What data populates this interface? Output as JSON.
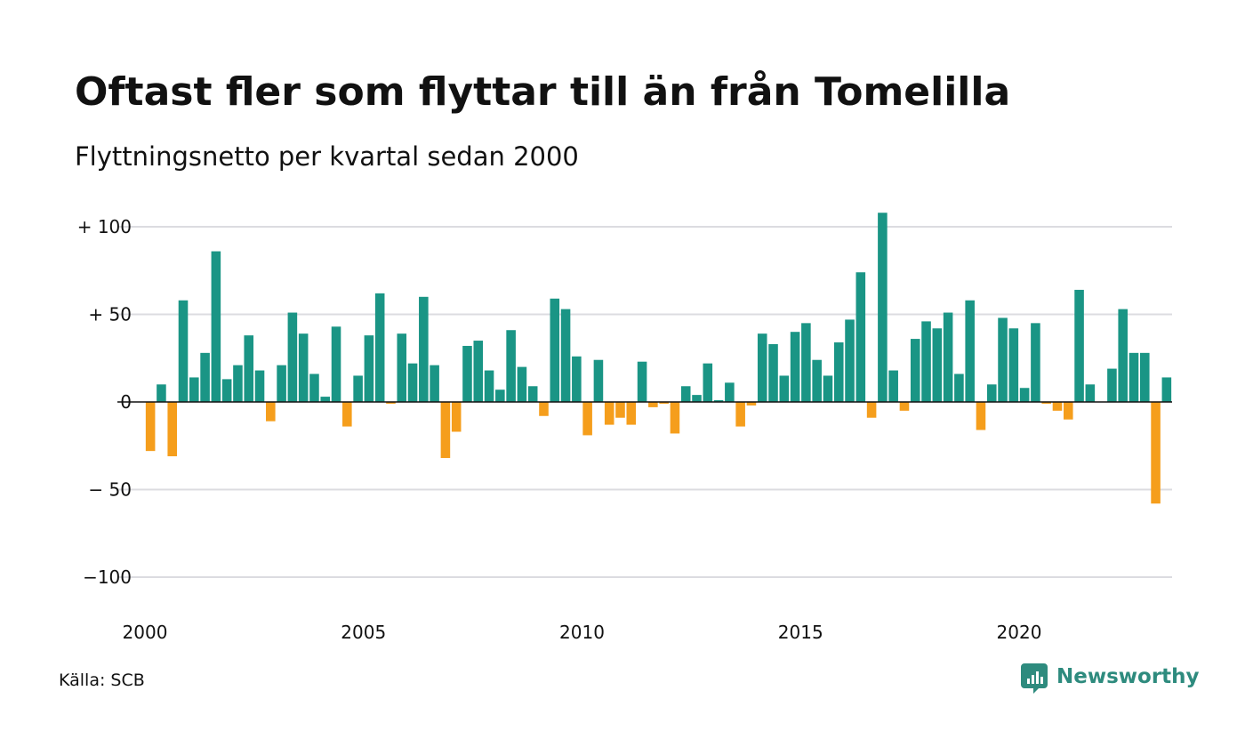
{
  "header": {
    "title": "Oftast fler som flyttar till än från Tomelilla",
    "subtitle": "Flyttningsnetto per kvartal sedan 2000"
  },
  "footer": {
    "source": "Källa: SCB",
    "brand": "Newsworthy"
  },
  "colors": {
    "positive": "#1a9585",
    "negative": "#f59e1c",
    "brand": "#2e8b7e"
  },
  "chart_data": {
    "type": "bar",
    "title": "Oftast fler som flyttar till än från Tomelilla",
    "subtitle": "Flyttningsnetto per kvartal sedan 2000",
    "x_start_year": 2000,
    "periods_per_year": 4,
    "x_ticks": [
      2000,
      2005,
      2010,
      2015,
      2020
    ],
    "y_ticks": [
      {
        "value": 100,
        "label": "+ 100"
      },
      {
        "value": 50,
        "label": "+  50"
      },
      {
        "value": 0,
        "label": "0"
      },
      {
        "value": -50,
        "label": "− 50"
      },
      {
        "value": -100,
        "label": "−100"
      }
    ],
    "ylim": [
      -112,
      110
    ],
    "grid": true,
    "legend": "none",
    "values": [
      -28,
      10,
      -31,
      58,
      14,
      28,
      86,
      13,
      21,
      38,
      18,
      -11,
      21,
      51,
      39,
      16,
      3,
      43,
      -14,
      15,
      38,
      62,
      -1,
      39,
      22,
      60,
      21,
      -32,
      -17,
      32,
      35,
      18,
      7,
      41,
      20,
      9,
      -8,
      59,
      53,
      26,
      -19,
      24,
      -13,
      -9,
      -13,
      23,
      -3,
      -1,
      -18,
      9,
      4,
      22,
      1,
      11,
      -14,
      -2,
      39,
      33,
      15,
      40,
      45,
      24,
      15,
      34,
      47,
      74,
      -9,
      108,
      18,
      -5,
      36,
      46,
      42,
      51,
      16,
      58,
      -16,
      10,
      48,
      42,
      8,
      45,
      -1,
      -5,
      -10,
      64,
      10,
      0,
      19,
      53,
      28,
      28,
      -58,
      14
    ]
  }
}
